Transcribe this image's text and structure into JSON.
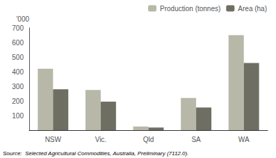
{
  "chart_data": {
    "type": "bar",
    "categories": [
      "NSW",
      "Vic.",
      "Qld",
      "SA",
      "WA"
    ],
    "series": [
      {
        "name": "Production (tonnes)",
        "color": "#b8b8a8",
        "values": [
          420,
          275,
          25,
          220,
          650
        ]
      },
      {
        "name": "Area (ha)",
        "color": "#6e6e62",
        "values": [
          280,
          195,
          18,
          155,
          460
        ]
      }
    ],
    "ylabel": "'000",
    "ylim": [
      0,
      700
    ],
    "yticks": [
      100,
      200,
      300,
      400,
      500,
      600,
      700
    ],
    "grid": false,
    "legend": "upper right",
    "annotations": [
      "Source:  Selected Agricultural Commodities, Australia, Preliminary (7112.0)."
    ]
  }
}
